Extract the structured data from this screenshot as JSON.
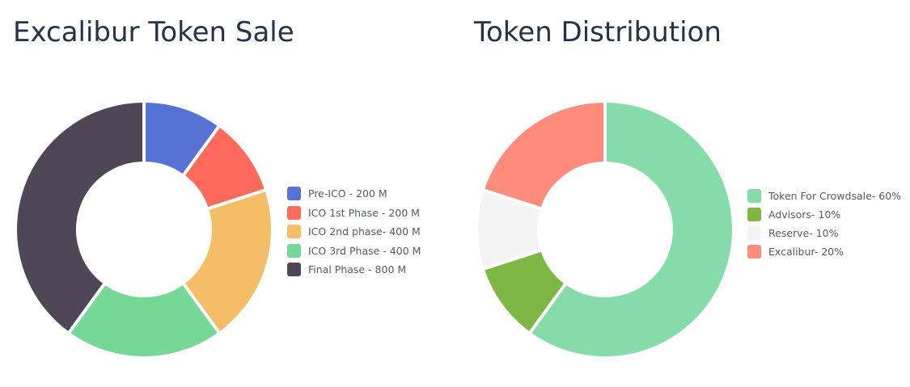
{
  "chart_data": [
    {
      "type": "pie",
      "title": "Excalibur Token Sale",
      "categories": [
        "Pre-ICO - 200 M",
        "ICO 1st Phase - 200 M",
        "ICO 2nd phase- 400 M",
        "ICO 3rd Phase - 400 M",
        "Final Phase - 800 M"
      ],
      "values": [
        200,
        200,
        400,
        400,
        800
      ],
      "colors": [
        "#5572d4",
        "#ff6a5c",
        "#f5bd66",
        "#75d897",
        "#4f4757"
      ],
      "legend": "right"
    },
    {
      "type": "pie",
      "title": "Token Distribution",
      "categories": [
        "Token For Crowdsale- 60%",
        "Advisors- 10%",
        "Reserve- 10%",
        "Excalibur- 20%"
      ],
      "values": [
        60,
        10,
        10,
        20
      ],
      "colors": [
        "#86dca8",
        "#7cb843",
        "#f4f4f4",
        "#ff8b7d"
      ],
      "legend": "right"
    }
  ]
}
